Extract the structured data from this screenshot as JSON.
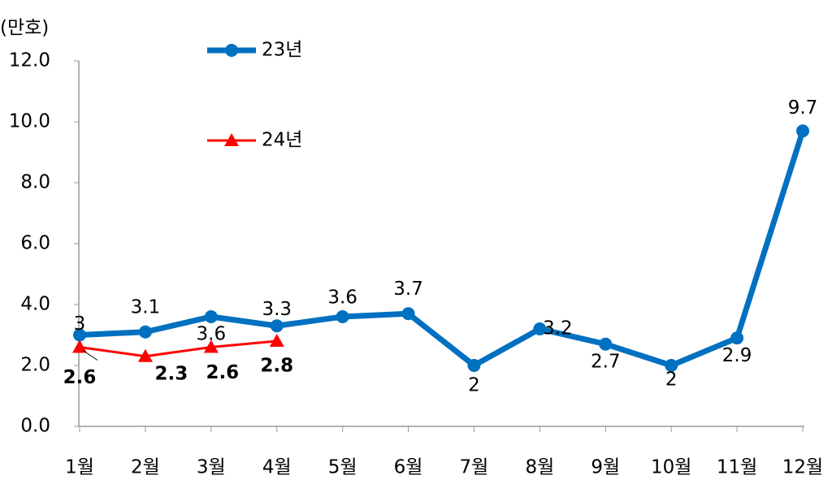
{
  "chart_data": {
    "type": "line",
    "yaxis_label": "(만호)",
    "categories": [
      "1월",
      "2월",
      "3월",
      "4월",
      "5월",
      "6월",
      "7월",
      "8월",
      "9월",
      "10월",
      "11월",
      "12월"
    ],
    "series": [
      {
        "name": "23년",
        "color": "#0070c0",
        "marker": "circle",
        "values": [
          3.0,
          3.1,
          3.6,
          3.3,
          3.6,
          3.7,
          2.0,
          3.2,
          2.7,
          2.0,
          2.9,
          9.7
        ]
      },
      {
        "name": "24년",
        "color": "#ff0000",
        "marker": "triangle",
        "values": [
          2.6,
          2.3,
          2.6,
          2.8,
          null,
          null,
          null,
          null,
          null,
          null,
          null,
          null
        ]
      }
    ],
    "ylim": [
      0,
      12
    ],
    "yticks": [
      {
        "value": 0,
        "label": "0.0"
      },
      {
        "value": 2,
        "label": "2.0"
      },
      {
        "value": 4,
        "label": "4.0"
      },
      {
        "value": 6,
        "label": "6.0"
      },
      {
        "value": 8,
        "label": "8.0"
      },
      {
        "value": 10,
        "label": "10.0"
      },
      {
        "value": 12,
        "label": "12.0"
      }
    ],
    "grid": false
  }
}
